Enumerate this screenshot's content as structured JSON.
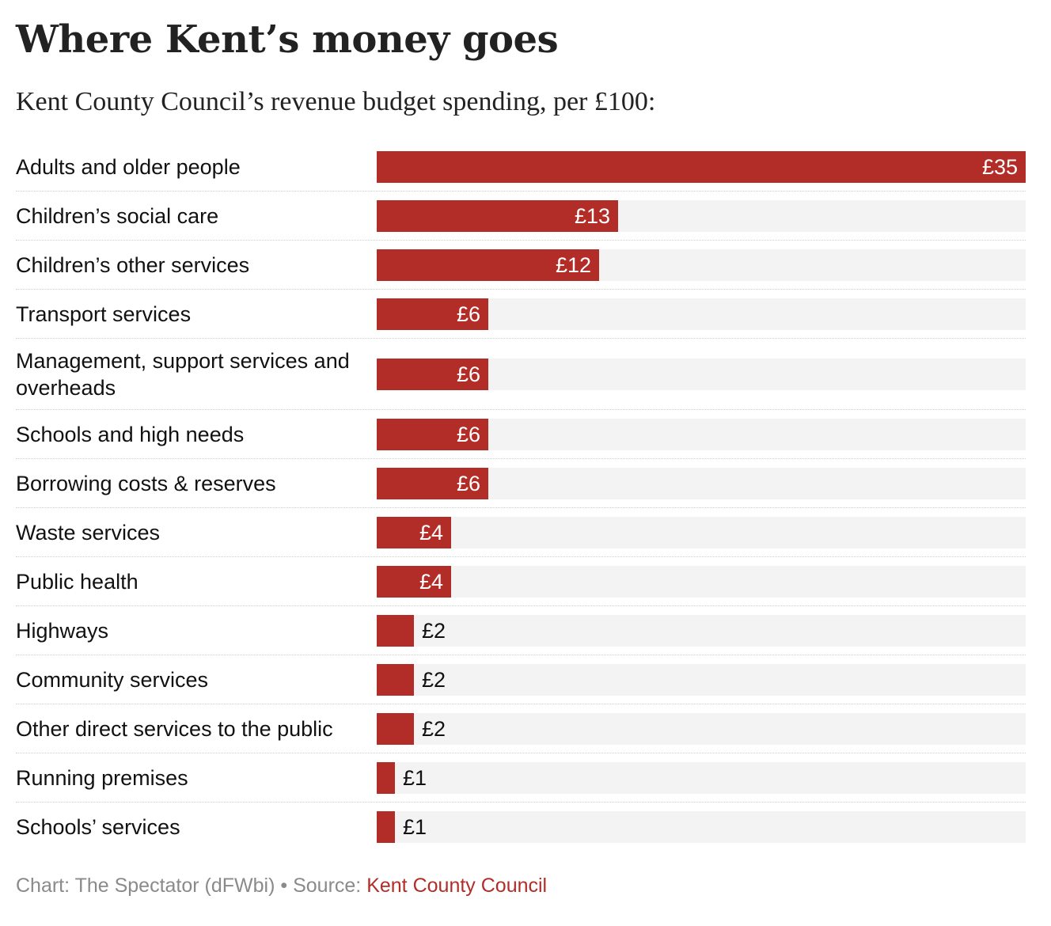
{
  "chart_data": {
    "type": "bar",
    "orientation": "horizontal",
    "title": "Where Kent’s money goes",
    "subtitle": "Kent County Council’s revenue budget spending, per £100:",
    "value_prefix": "£",
    "xlim": [
      0,
      35
    ],
    "grid": false,
    "bar_color": "#b22d27",
    "track_color": "#f3f3f3",
    "categories": [
      "Adults and older people",
      "Children’s social care",
      "Children’s other services",
      "Transport services",
      "Management, support services and overheads",
      "Schools and high needs",
      "Borrowing costs & reserves",
      "Waste services",
      "Public health",
      "Highways",
      "Community services",
      "Other direct services to the public",
      "Running premises",
      "Schools’ services"
    ],
    "values": [
      35,
      13,
      12,
      6,
      6,
      6,
      6,
      4,
      4,
      2,
      2,
      2,
      1,
      1
    ],
    "value_labels": [
      "£35",
      "£13",
      "£12",
      "£6",
      "£6",
      "£6",
      "£6",
      "£4",
      "£4",
      "£2",
      "£2",
      "£2",
      "£1",
      "£1"
    ]
  },
  "footer": {
    "credit": "Chart: The Spectator (dFWbi)",
    "separator": " • ",
    "source_label": "Source: ",
    "source_name": "Kent County Council"
  }
}
